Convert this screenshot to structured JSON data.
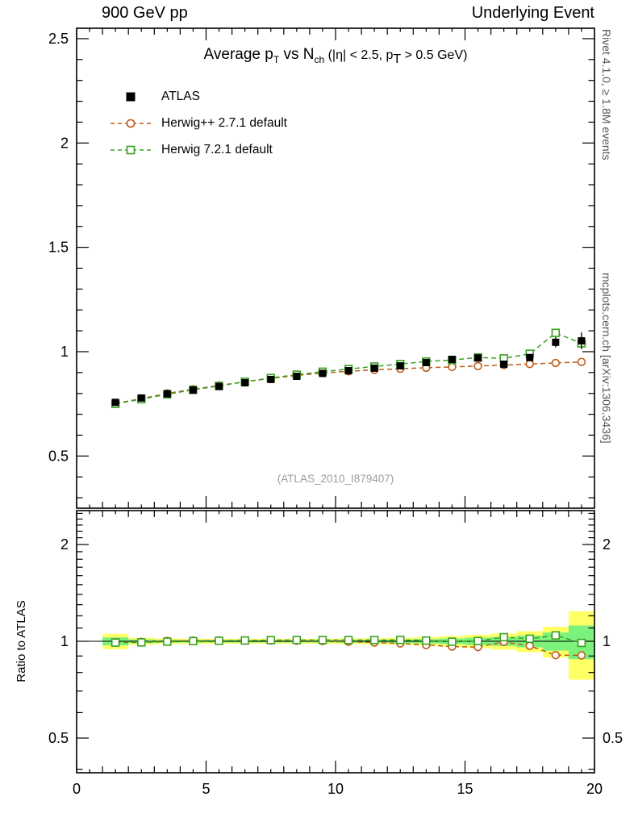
{
  "header": {
    "left": "900 GeV pp",
    "right": "Underlying Event"
  },
  "title": {
    "seg1": "Average p",
    "sub1": "T",
    "seg2": " vs N",
    "sub2": "ch",
    "seg3": " (|η| < 2.5, p",
    "sub3": "T",
    "seg4": " > 0.5 GeV)"
  },
  "legend": [
    {
      "label": "ATLAS",
      "marker": "filled-square",
      "color": "#000000"
    },
    {
      "label": "Herwig++ 2.7.1 default",
      "marker": "open-circle",
      "color": "#bf5b17"
    },
    {
      "label": "Herwig 7.2.1 default",
      "marker": "open-square",
      "color": "#3aa021"
    }
  ],
  "watermark": "(ATLAS_2010_I879407)",
  "side": {
    "rivet": "Rivet 4.1.0, ≥ 1.8M events",
    "mcplots": "mcplots.cern.ch [arXiv:1306.3436]"
  },
  "ratio_label": "Ratio to ATLAS",
  "chart_data": {
    "type": "line",
    "title": "Average pT vs Nch (|η| < 2.5, pT > 0.5 GeV)",
    "xlabel": "",
    "x_range": [
      0,
      20
    ],
    "y_range_main": [
      0.25,
      2.55
    ],
    "y_range_ratio": [
      0.39,
      2.55
    ],
    "ratio_y_scale": "log",
    "grid": false,
    "legend_position": "top-left",
    "x_major_ticks": [
      0,
      5,
      10,
      15,
      20
    ],
    "y_major_ticks_main": [
      0.5,
      1,
      1.5,
      2,
      2.5
    ],
    "y_major_ticks_ratio": [
      0.5,
      1,
      2
    ],
    "bin_width": 1,
    "x": [
      1.5,
      2.5,
      3.5,
      4.5,
      5.5,
      6.5,
      7.5,
      8.5,
      9.5,
      10.5,
      11.5,
      12.5,
      13.5,
      14.5,
      15.5,
      16.5,
      17.5,
      18.5,
      19.5
    ],
    "series": [
      {
        "id": "atlas",
        "name": "ATLAS",
        "marker": "filled-square",
        "color": "#000000",
        "line": "none",
        "values": [
          0.757,
          0.778,
          0.798,
          0.816,
          0.833,
          0.851,
          0.867,
          0.882,
          0.896,
          0.909,
          0.921,
          0.932,
          0.948,
          0.963,
          0.97,
          0.94,
          0.972,
          1.045,
          1.052
        ],
        "errors": [
          0.006,
          0.005,
          0.005,
          0.005,
          0.005,
          0.005,
          0.005,
          0.005,
          0.006,
          0.006,
          0.007,
          0.008,
          0.009,
          0.01,
          0.012,
          0.014,
          0.018,
          0.025,
          0.04
        ]
      },
      {
        "id": "herwigpp",
        "name": "Herwig++ 2.7.1 default",
        "marker": "open-circle",
        "color": "#bf5b17",
        "line": "dashed",
        "values": [
          0.752,
          0.775,
          0.8,
          0.82,
          0.838,
          0.856,
          0.872,
          0.886,
          0.898,
          0.906,
          0.913,
          0.918,
          0.923,
          0.927,
          0.931,
          0.936,
          0.941,
          0.946,
          0.951
        ]
      },
      {
        "id": "herwig7",
        "name": "Herwig 7.2.1 default",
        "marker": "open-square",
        "color": "#3aa021",
        "line": "dashed",
        "values": [
          0.75,
          0.772,
          0.796,
          0.817,
          0.836,
          0.856,
          0.874,
          0.89,
          0.904,
          0.917,
          0.929,
          0.941,
          0.953,
          0.96,
          0.972,
          0.968,
          0.99,
          1.09,
          1.04
        ]
      }
    ],
    "ratio": {
      "reference": 1,
      "band_yellow_halfwidth": [
        0.055,
        0.025,
        0.02,
        0.018,
        0.018,
        0.018,
        0.018,
        0.018,
        0.018,
        0.02,
        0.022,
        0.025,
        0.03,
        0.038,
        0.048,
        0.058,
        0.075,
        0.11,
        0.24
      ],
      "band_green_halfwidth": [
        0.028,
        0.013,
        0.01,
        0.009,
        0.009,
        0.009,
        0.009,
        0.009,
        0.009,
        0.01,
        0.011,
        0.013,
        0.016,
        0.02,
        0.026,
        0.032,
        0.042,
        0.065,
        0.12
      ]
    },
    "colors": {
      "band_yellow": "#ffff66",
      "band_green": "#7cf17c"
    }
  }
}
